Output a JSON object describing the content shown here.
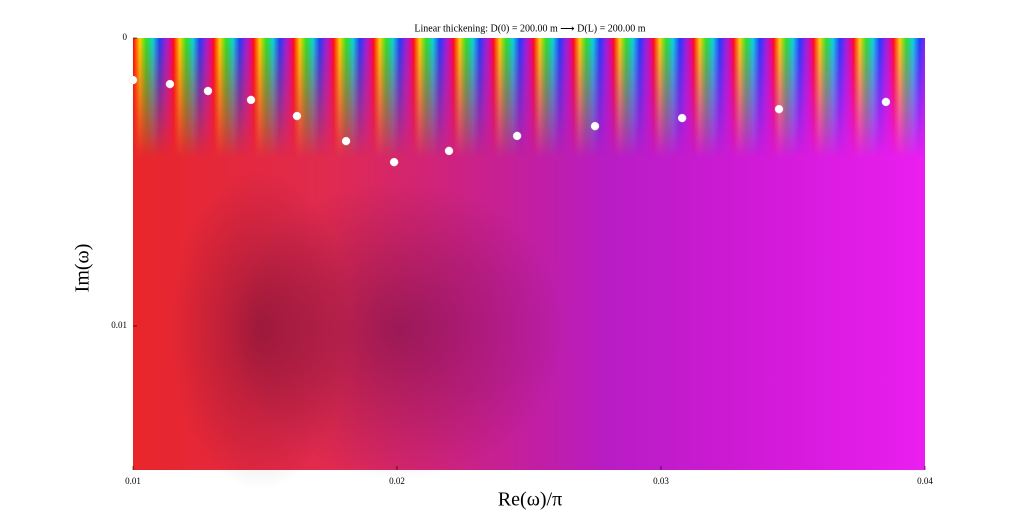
{
  "chart_data": {
    "type": "scatter",
    "title": "Linear thickening: D(0) = 200.00 m ⟶ D(L) = 200.00 m",
    "x_label": "Re(ω)/π",
    "y_label": "Im(ω)",
    "x": [
      0.01,
      0.0114,
      0.01284,
      0.01447,
      0.01621,
      0.01807,
      0.01989,
      0.02197,
      0.02455,
      0.0275,
      0.0308,
      0.03447,
      0.03852
    ],
    "values": [
      0.00146,
      0.0016,
      0.00184,
      0.00215,
      0.00271,
      0.00358,
      0.00431,
      0.00392,
      0.0034,
      0.00306,
      0.00278,
      0.00247,
      0.00222
    ],
    "color": "#ffffff",
    "xlim": [
      0.01,
      0.04
    ],
    "xticks": [
      0.01,
      0.02,
      0.03,
      0.04
    ],
    "ylim": [
      0,
      0.015
    ],
    "yticks": [
      0,
      0.01
    ],
    "y_inverted": true
  }
}
